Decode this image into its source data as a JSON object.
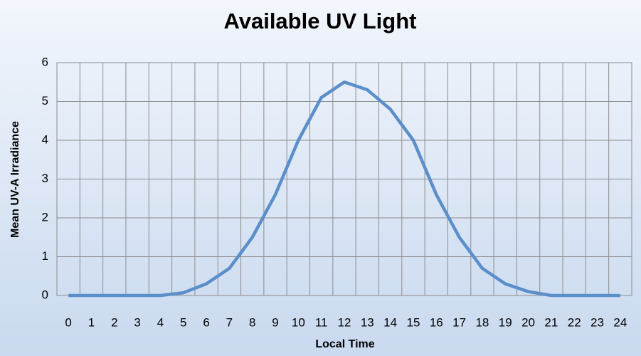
{
  "chart_data": {
    "type": "line",
    "title": "Available UV Light",
    "x_label": "Local Time",
    "y_label": "Mean UV-A Irradiance",
    "categories": [
      "0",
      "1",
      "2",
      "3",
      "4",
      "5",
      "6",
      "7",
      "8",
      "9",
      "10",
      "11",
      "12",
      "13",
      "14",
      "15",
      "16",
      "17",
      "18",
      "19",
      "20",
      "21",
      "22",
      "23",
      "24"
    ],
    "series": [
      {
        "name": "Mean UV-A Irradiance",
        "color": "#5b8fc9",
        "values": [
          0,
          0,
          0,
          0,
          0,
          0.07,
          0.3,
          0.7,
          1.5,
          2.6,
          4,
          5.1,
          5.5,
          5.3,
          4.8,
          4,
          2.6,
          1.5,
          0.7,
          0.3,
          0.1,
          0,
          0,
          0,
          0
        ]
      }
    ],
    "ylim": [
      0,
      6
    ],
    "yticks": [
      0,
      1,
      2,
      3,
      4,
      5,
      6
    ],
    "grid": true
  }
}
